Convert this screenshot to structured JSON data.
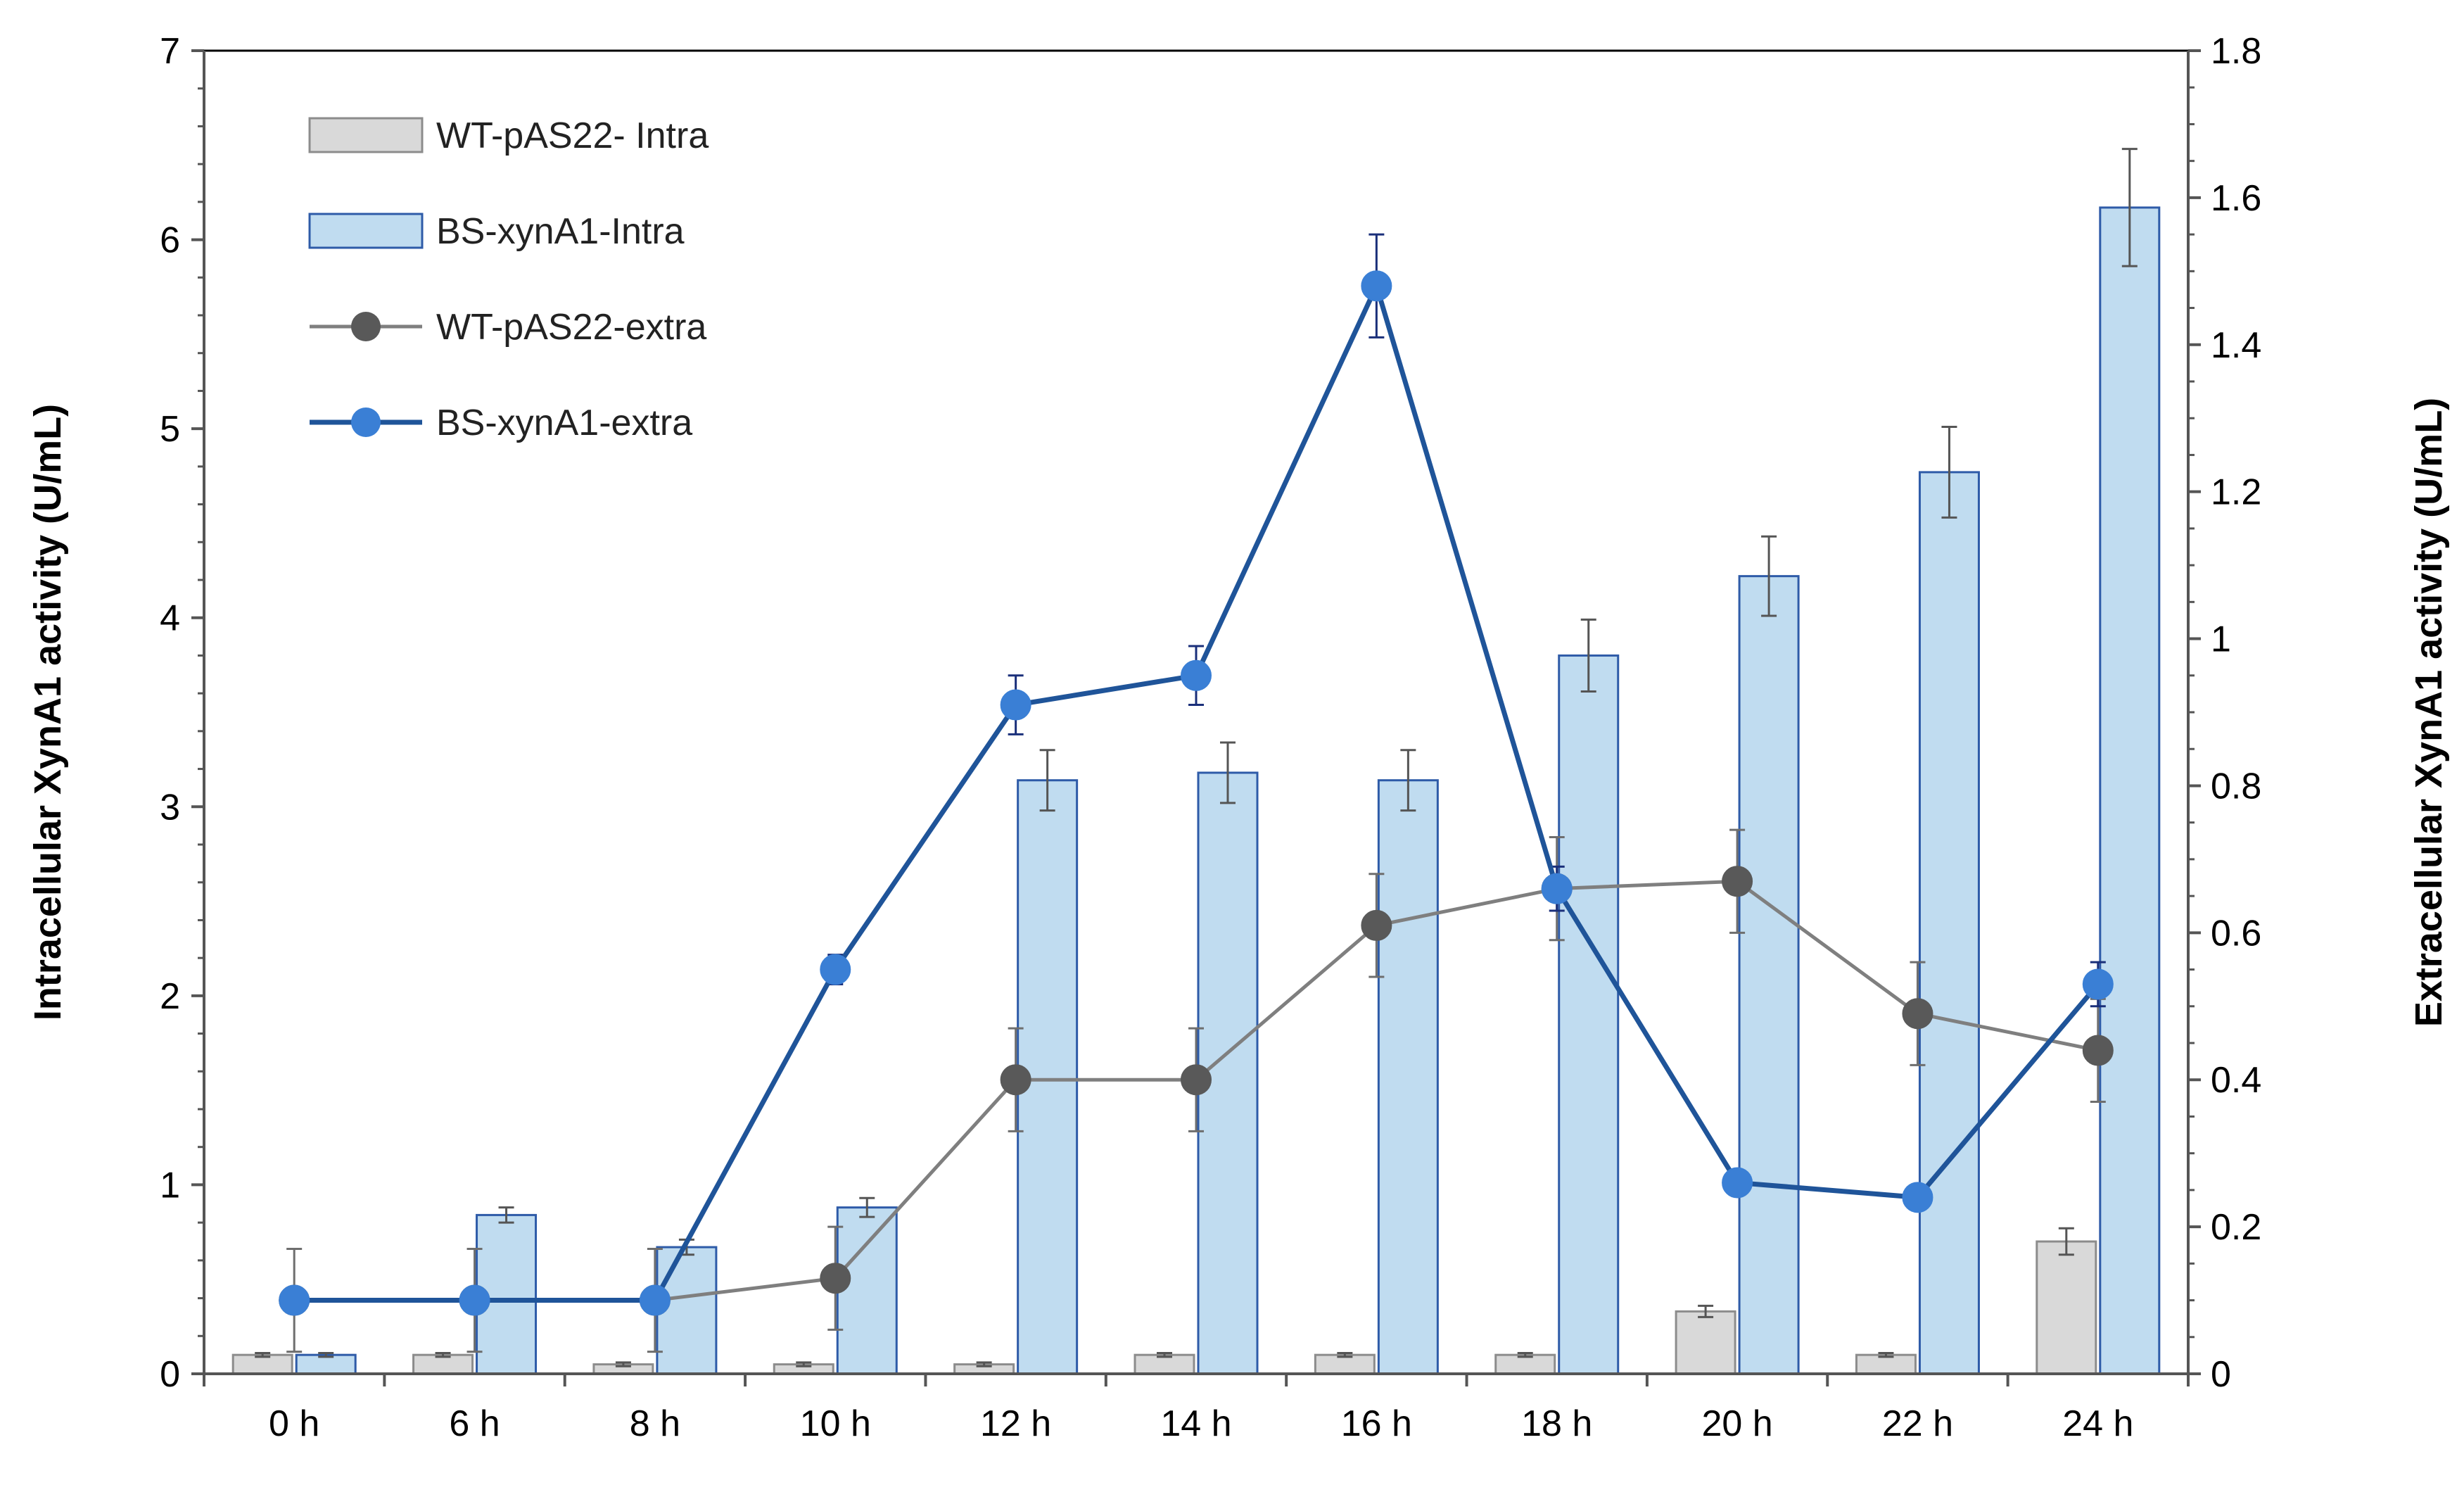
{
  "chart_data": {
    "type": "bar",
    "categories": [
      "0 h",
      "6 h",
      "8 h",
      "10 h",
      "12 h",
      "14 h",
      "16 h",
      "18 h",
      "20 h",
      "22 h",
      "24 h"
    ],
    "y_left": {
      "label": "Intracellular XynA1 activity (U/mL)",
      "range": [
        0,
        7
      ],
      "ticks": [
        0,
        1,
        2,
        3,
        4,
        5,
        6,
        7
      ]
    },
    "y_right": {
      "label": "Extracellular  XynA1 activity (U/mL)",
      "range": [
        0,
        1.8
      ],
      "ticks": [
        0,
        0.2,
        0.4,
        0.6,
        0.8,
        1,
        1.2,
        1.4,
        1.6,
        1.8
      ],
      "tick_labels": [
        "0",
        "0.2",
        "0.4",
        "0.6",
        "0.8",
        "1",
        "1.2",
        "1.4",
        "1.6",
        "1.8"
      ]
    },
    "bar_series": [
      {
        "name": "WT-pAS22- Intra",
        "axis": "left",
        "color": "#d9d9d9",
        "edge": "#8c8c8c",
        "errColor": "#555555",
        "values": [
          0.1,
          0.1,
          0.05,
          0.05,
          0.05,
          0.1,
          0.1,
          0.1,
          0.33,
          0.1,
          0.7
        ],
        "errors": [
          0.01,
          0.01,
          0.01,
          0.01,
          0.01,
          0.01,
          0.01,
          0.01,
          0.03,
          0.01,
          0.07
        ]
      },
      {
        "name": "BS-xynA1-Intra",
        "axis": "left",
        "color": "#c0dcf0",
        "edge": "#2e5ba8",
        "errColor": "#555555",
        "values": [
          0.1,
          0.84,
          0.67,
          0.88,
          3.14,
          3.18,
          3.14,
          3.8,
          4.22,
          4.77,
          6.17
        ],
        "errors": [
          0.01,
          0.04,
          0.04,
          0.05,
          0.16,
          0.16,
          0.16,
          0.19,
          0.21,
          0.24,
          0.31
        ]
      }
    ],
    "line_series": [
      {
        "name": "WT-pAS22-extra",
        "axis": "right",
        "color": "#7f7f7f",
        "marker": "#595959",
        "errColor": "#6e6e6e",
        "values": [
          0.1,
          0.1,
          0.1,
          0.13,
          0.4,
          0.4,
          0.61,
          0.66,
          0.67,
          0.49,
          0.44
        ],
        "errors": [
          0.07,
          0.07,
          0.07,
          0.07,
          0.07,
          0.07,
          0.07,
          0.07,
          0.07,
          0.07,
          0.07
        ]
      },
      {
        "name": "BS-xynA1-extra",
        "axis": "right",
        "color": "#1f5499",
        "marker": "#3a7fd5",
        "errColor": "#1a2f7a",
        "values": [
          0.1,
          0.1,
          0.1,
          0.55,
          0.91,
          0.95,
          1.48,
          0.66,
          0.26,
          0.24,
          0.53
        ],
        "errors": [
          0,
          0,
          0,
          0.02,
          0.04,
          0.04,
          0.07,
          0.03,
          0.01,
          0.01,
          0.03
        ]
      }
    ],
    "legend": {
      "position": "top-left",
      "items": [
        "WT-pAS22- Intra",
        "BS-xynA1-Intra",
        "WT-pAS22-extra",
        "BS-xynA1-extra"
      ]
    }
  }
}
